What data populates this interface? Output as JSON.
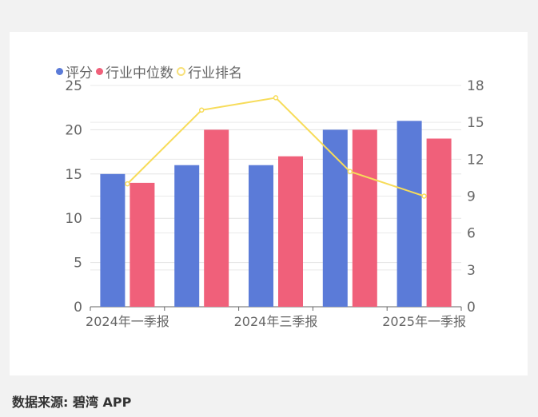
{
  "chart_data": {
    "type": "bar",
    "categories": [
      "2024年一季报",
      "",
      "2024年三季报",
      "",
      "2025年一季报"
    ],
    "series": [
      {
        "name": "评分",
        "type": "bar",
        "axis": "left",
        "color": "#5b7bd8",
        "values": [
          15,
          16,
          16,
          20,
          21
        ]
      },
      {
        "name": "行业中位数",
        "type": "bar",
        "axis": "left",
        "color": "#f0607a",
        "values": [
          14,
          20,
          17,
          20,
          19
        ]
      },
      {
        "name": "行业排名",
        "type": "line",
        "axis": "right",
        "color": "#f7dc5a",
        "values": [
          10,
          16,
          17,
          11,
          9
        ]
      }
    ],
    "y_left": {
      "range": [
        0,
        25
      ],
      "ticks": [
        "0",
        "5",
        "10",
        "15",
        "20",
        "25"
      ]
    },
    "y_right": {
      "range": [
        0,
        18
      ],
      "ticks": [
        "0",
        "3",
        "6",
        "9",
        "12",
        "15",
        "18"
      ]
    },
    "grid": true,
    "legend": "top-left"
  },
  "footer": {
    "source": "数据来源: 碧湾 APP"
  }
}
